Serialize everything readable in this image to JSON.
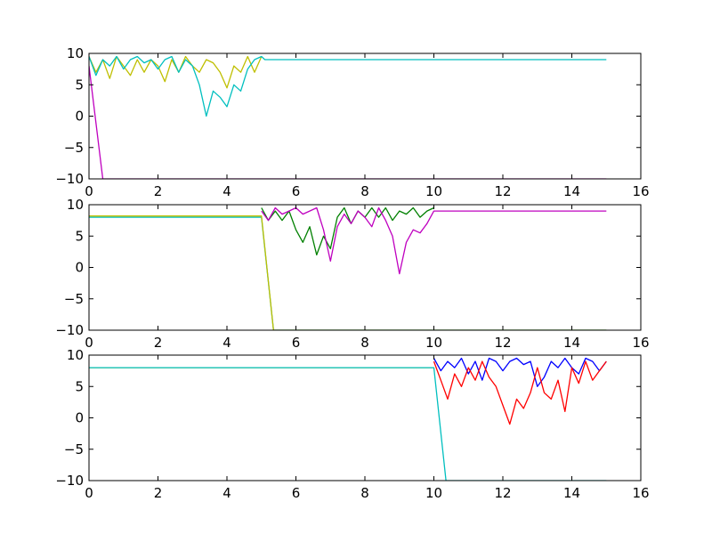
{
  "chart_data": [
    {
      "type": "line",
      "title": "",
      "xlabel": "",
      "ylabel": "",
      "xlim": [
        0,
        16
      ],
      "ylim": [
        -10,
        10
      ],
      "grid": false,
      "xticks": [
        0,
        2,
        4,
        6,
        8,
        10,
        12,
        14,
        16
      ],
      "yticks": [
        10,
        5,
        0,
        -5,
        -10
      ],
      "series": [
        {
          "color": "#bfbf00",
          "x": [
            0,
            0.2,
            0.4,
            0.6,
            0.8,
            1.0,
            1.2,
            1.4,
            1.6,
            1.8,
            2.0,
            2.2,
            2.4,
            2.6,
            2.8,
            3.0,
            3.2,
            3.4,
            3.6,
            3.8,
            4.0,
            4.2,
            4.4,
            4.6,
            4.8,
            5.0
          ],
          "y": [
            9.5,
            7,
            9,
            6,
            9.5,
            8,
            6.5,
            9,
            7,
            9,
            8,
            5.5,
            9,
            7,
            9.5,
            8,
            7,
            9,
            8.5,
            7,
            4.5,
            8,
            7,
            9.5,
            7,
            9.5
          ]
        },
        {
          "color": "#00bfbf",
          "x": [
            0,
            0.2,
            0.4,
            0.6,
            0.8,
            1.0,
            1.2,
            1.4,
            1.6,
            1.8,
            2.0,
            2.2,
            2.4,
            2.6,
            2.8,
            3.0,
            3.2,
            3.4,
            3.6,
            3.8,
            4.0,
            4.2,
            4.4,
            4.6,
            4.8,
            5.0,
            5.1,
            15
          ],
          "y": [
            9.5,
            6.5,
            9,
            8,
            9.5,
            7.5,
            9,
            9.5,
            8.5,
            9,
            7.5,
            9,
            9.5,
            7,
            9,
            8,
            5,
            0,
            4,
            3,
            1.5,
            5,
            4,
            7.5,
            9,
            9.5,
            9,
            9
          ]
        },
        {
          "color": "#bf00bf",
          "x": [
            0,
            0.4,
            15
          ],
          "y": [
            8,
            -10,
            -10
          ]
        }
      ]
    },
    {
      "type": "line",
      "title": "",
      "xlabel": "",
      "ylabel": "",
      "xlim": [
        0,
        16
      ],
      "ylim": [
        -10,
        10
      ],
      "grid": false,
      "xticks": [
        0,
        2,
        4,
        6,
        8,
        10,
        12,
        14,
        16
      ],
      "yticks": [
        10,
        5,
        0,
        -5,
        -10
      ],
      "series": [
        {
          "color": "#00bfbf",
          "x": [
            0,
            5.0,
            5.35,
            15
          ],
          "y": [
            8,
            8,
            -10,
            -10
          ]
        },
        {
          "color": "#bfbf00",
          "x": [
            0,
            5.0,
            5.35,
            15
          ],
          "y": [
            8.2,
            8.2,
            -10,
            -10
          ]
        },
        {
          "color": "#008000",
          "x": [
            5.0,
            5.2,
            5.4,
            5.6,
            5.8,
            6.0,
            6.2,
            6.4,
            6.6,
            6.8,
            7.0,
            7.2,
            7.4,
            7.6,
            7.8,
            8.0,
            8.2,
            8.4,
            8.6,
            8.8,
            9.0,
            9.2,
            9.4,
            9.6,
            9.8,
            10.0
          ],
          "y": [
            9.5,
            7.5,
            9,
            7.5,
            9,
            6,
            4,
            6.5,
            2,
            5,
            3,
            8,
            9.5,
            7,
            9,
            8,
            9.5,
            8,
            9.5,
            7.5,
            9,
            8.5,
            9.5,
            8,
            9,
            9.5
          ]
        },
        {
          "color": "#bf00bf",
          "x": [
            5.0,
            5.2,
            5.4,
            5.6,
            5.8,
            6.0,
            6.2,
            6.4,
            6.6,
            6.8,
            7.0,
            7.2,
            7.4,
            7.6,
            7.8,
            8.0,
            8.2,
            8.4,
            8.6,
            8.8,
            9.0,
            9.2,
            9.4,
            9.6,
            9.8,
            10.0,
            10.1,
            15
          ],
          "y": [
            9,
            7.5,
            9.5,
            8.5,
            9,
            9.5,
            8.5,
            9,
            9.5,
            6,
            1,
            6.5,
            8.5,
            7,
            9,
            8,
            6.5,
            9.5,
            7.5,
            5,
            -1,
            4,
            6,
            5.5,
            7,
            9,
            9,
            9
          ]
        }
      ]
    },
    {
      "type": "line",
      "title": "",
      "xlabel": "",
      "ylabel": "",
      "xlim": [
        0,
        16
      ],
      "ylim": [
        -10,
        10
      ],
      "grid": false,
      "xticks": [
        0,
        2,
        4,
        6,
        8,
        10,
        12,
        14,
        16
      ],
      "yticks": [
        10,
        5,
        0,
        -5,
        -10
      ],
      "series": [
        {
          "color": "#bfbf00",
          "x": [
            0,
            10.0
          ],
          "y": [
            8,
            8
          ]
        },
        {
          "color": "#00bfbf",
          "x": [
            0,
            10.0,
            10.35,
            15
          ],
          "y": [
            8,
            8,
            -10,
            -10
          ]
        },
        {
          "color": "#0000ff",
          "x": [
            10.0,
            10.2,
            10.4,
            10.6,
            10.8,
            11.0,
            11.2,
            11.4,
            11.6,
            11.8,
            12.0,
            12.2,
            12.4,
            12.6,
            12.8,
            13.0,
            13.2,
            13.4,
            13.6,
            13.8,
            14.0,
            14.2,
            14.4,
            14.6,
            14.8,
            15.0
          ],
          "y": [
            9.5,
            7.5,
            9,
            8,
            9.5,
            7,
            9,
            6,
            9.5,
            9,
            7.5,
            9,
            9.5,
            8.5,
            9,
            5,
            6.5,
            9,
            8,
            9.5,
            8,
            7,
            9.5,
            9,
            7.5,
            9
          ]
        },
        {
          "color": "#ff0000",
          "x": [
            10.0,
            10.2,
            10.4,
            10.6,
            10.8,
            11.0,
            11.2,
            11.4,
            11.6,
            11.8,
            12.0,
            12.2,
            12.4,
            12.6,
            12.8,
            13.0,
            13.2,
            13.4,
            13.6,
            13.8,
            14.0,
            14.2,
            14.4,
            14.6,
            14.8,
            15.0
          ],
          "y": [
            9,
            6,
            3,
            7,
            5,
            8,
            6,
            9,
            6.5,
            5,
            2,
            -1,
            3,
            1.5,
            4,
            8,
            4,
            3,
            6,
            1,
            8,
            5.5,
            9,
            6,
            7.5,
            9
          ]
        }
      ]
    }
  ]
}
